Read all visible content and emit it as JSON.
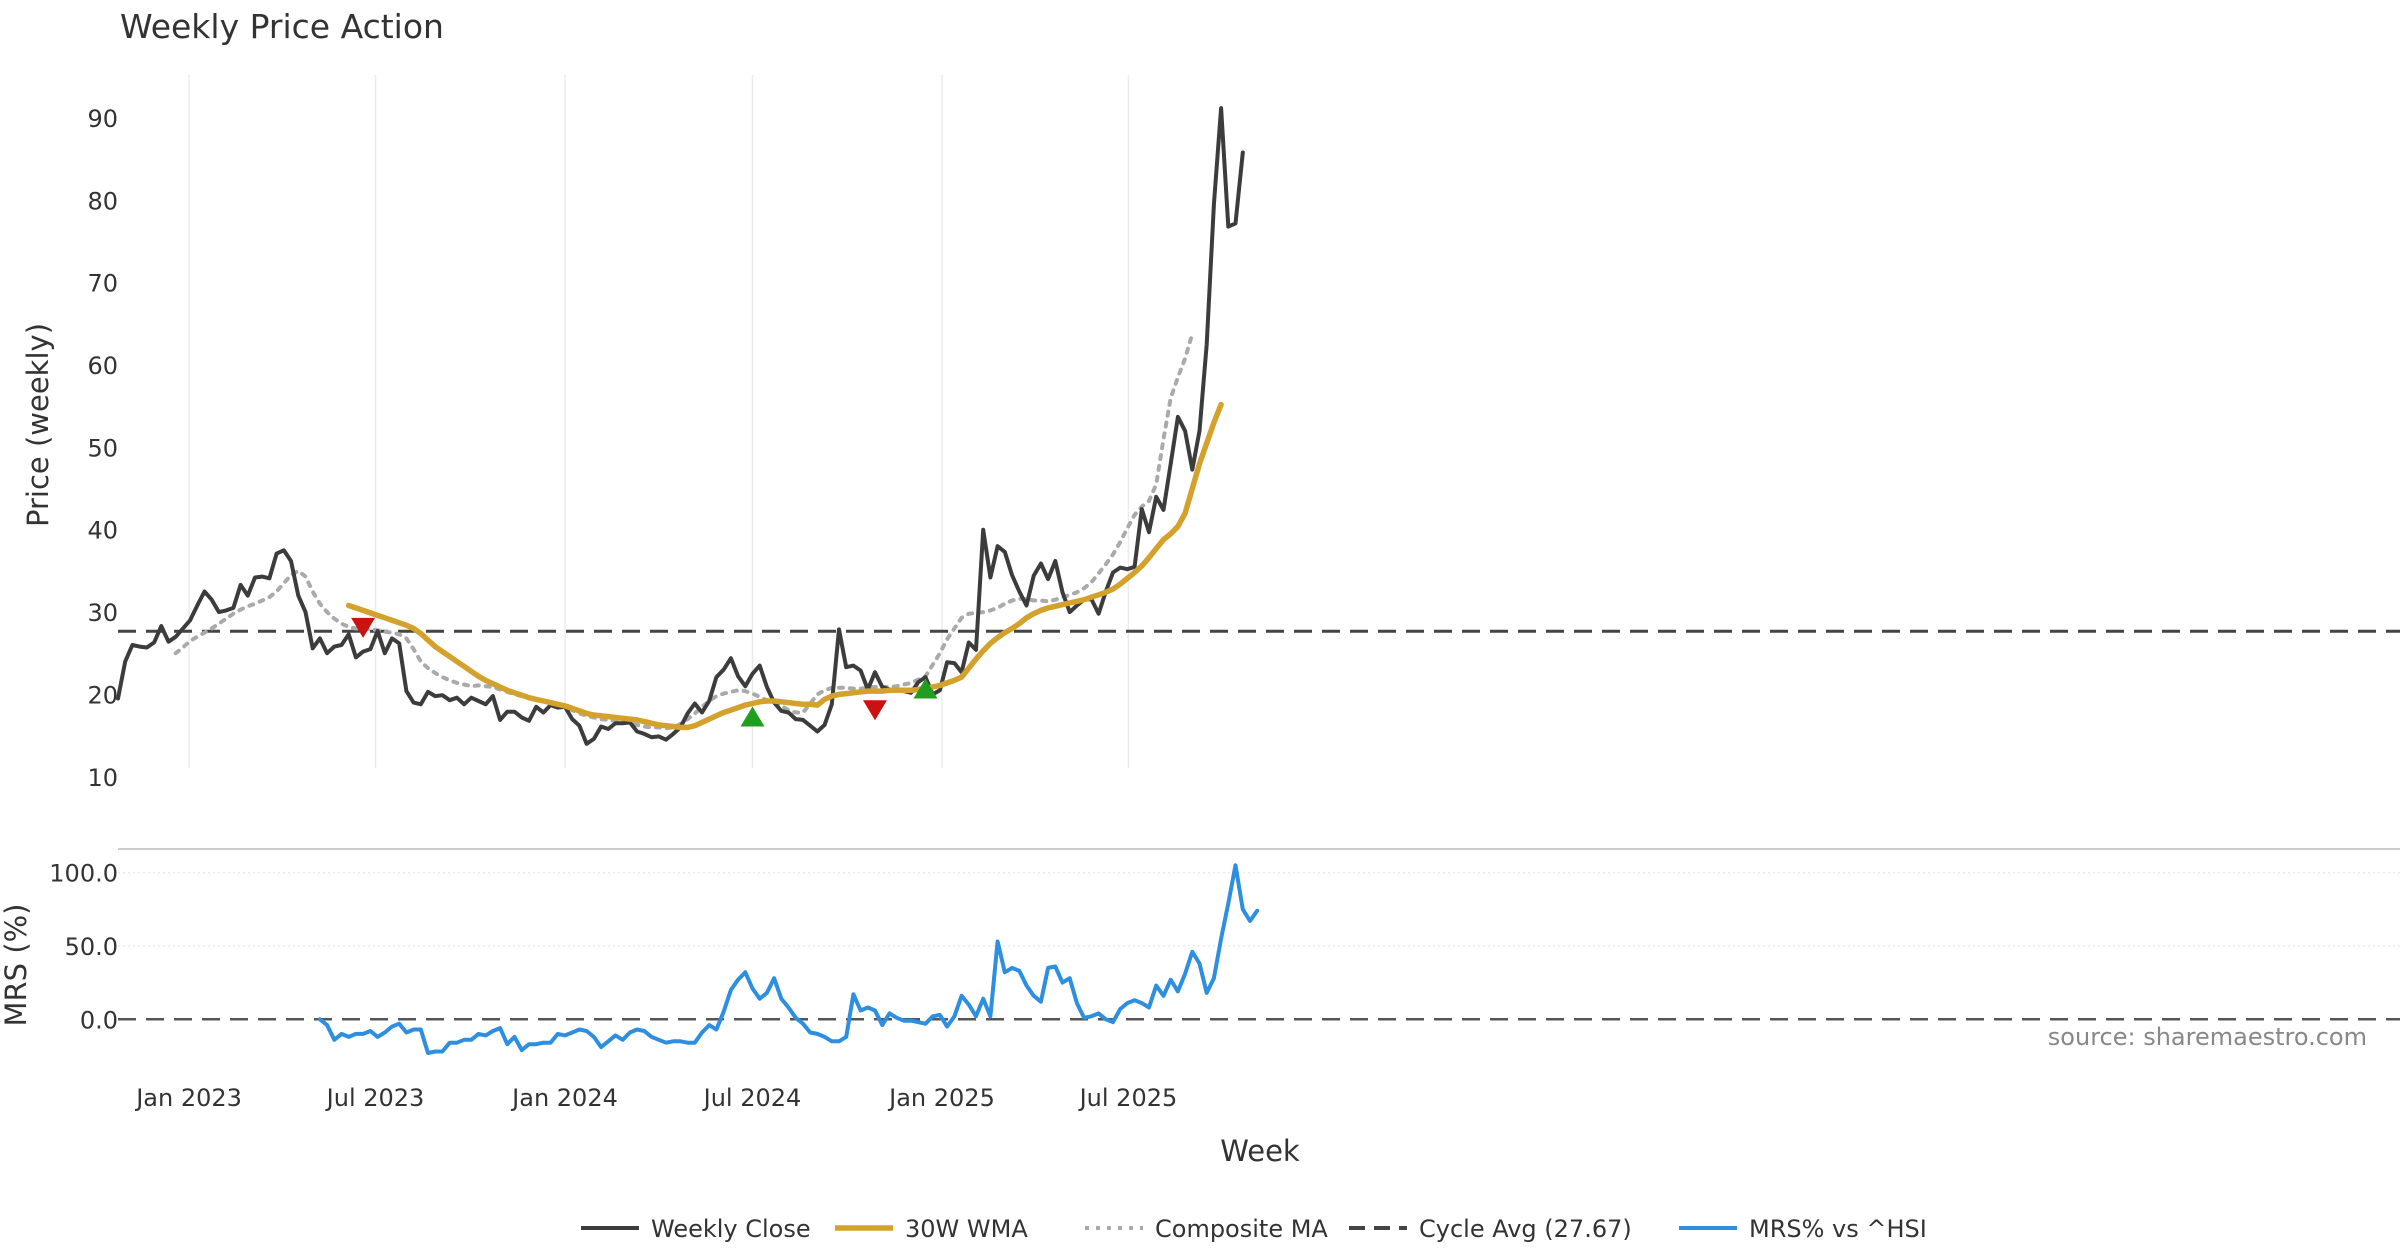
{
  "chart_data": {
    "type": "line",
    "title": "Weekly Price Action",
    "xlabel": "Week",
    "source_label": "source: sharemaestro.com",
    "x_start": "2022-10-24",
    "x_ticks": [
      {
        "date": "2023-01-01",
        "label": "Jan 2023"
      },
      {
        "date": "2023-07-01",
        "label": "Jul 2023"
      },
      {
        "date": "2024-01-01",
        "label": "Jan 2024"
      },
      {
        "date": "2024-07-01",
        "label": "Jul 2024"
      },
      {
        "date": "2025-01-01",
        "label": "Jan 2025"
      },
      {
        "date": "2025-07-01",
        "label": "Jul 2025"
      }
    ],
    "price_panel": {
      "ylabel": "Price (weekly)",
      "ylim": [
        9,
        94
      ],
      "yticks": [
        10,
        20,
        30,
        40,
        50,
        60,
        70,
        80,
        90
      ],
      "cycle_avg": 27.67,
      "series": {
        "weekly_close": [
          {
            "offset": 0,
            "values": [
              19.5,
              24,
              26,
              25.8,
              25.7,
              26.3,
              28.3,
              26.4,
              27,
              28,
              29,
              30.8,
              32.5,
              31.5,
              30,
              30.2,
              30.5,
              33.3,
              32,
              34.2,
              34.3,
              34.1,
              37.1,
              37.5,
              36.2,
              32,
              30,
              25.6,
              26.8,
              25,
              25.8,
              26,
              27.3,
              24.5,
              25.2,
              25.5,
              27.7,
              25,
              26.8,
              26.2,
              20.4,
              19,
              18.8,
              20.3,
              19.8,
              19.9,
              19.3,
              19.6,
              18.8,
              19.6,
              19.2,
              18.8,
              19.8,
              16.9,
              17.9,
              17.9,
              17.2,
              16.8,
              18.5,
              17.8,
              18.7,
              18.4,
              18.5,
              17,
              16.2,
              14,
              14.6,
              16.1,
              15.8,
              16.5,
              16.5,
              16.6,
              15.5,
              15.2,
              14.8,
              14.9,
              14.5,
              15.2,
              16,
              17.7,
              18.9,
              17.8,
              19.2,
              22.1,
              23,
              24.4,
              22.2,
              21,
              22.5,
              23.5,
              20.9,
              19,
              18,
              17.8,
              17,
              16.9,
              16.2,
              15.5,
              16.3,
              18.8,
              27.9,
              23.3,
              23.5,
              22.9,
              20.6,
              22.7,
              20.9,
              20.6,
              20.5,
              20.4,
              20.2,
              21.5,
              22.1,
              20,
              20.5,
              23.9,
              23.8,
              22.7,
              26.3,
              25.4,
              40,
              34.2,
              38,
              37.3,
              34.5,
              32.5,
              30.8,
              34.4,
              35.9,
              34,
              36.2,
              32.4,
              30,
              30.8,
              31.5,
              31.6,
              29.8,
              32.5,
              34.8,
              35.4,
              35.2,
              35.5,
              42.5,
              39.7,
              44,
              42.4,
              48,
              53.7,
              52,
              47.3,
              52,
              62.5,
              79.5,
              91.2,
              76.8,
              77.2,
              85.8
            ]
          }
        ],
        "wma_30w": [
          {
            "offset": 32,
            "values": [
              30.8,
              30.5,
              30.2,
              29.9,
              29.6,
              29.3,
              29,
              28.7,
              28.4,
              28,
              27.4,
              26.6,
              25.8,
              25.2,
              24.6,
              24,
              23.4,
              22.8,
              22.2,
              21.7,
              21.3,
              20.9,
              20.5,
              20.2,
              19.9,
              19.6,
              19.4,
              19.2,
              19,
              18.8,
              18.6,
              18.3,
              18,
              17.7,
              17.5,
              17.4,
              17.3,
              17.2,
              17.1,
              17,
              16.9,
              16.7,
              16.5,
              16.3,
              16.2,
              16.1,
              16,
              16,
              16.2,
              16.6,
              17,
              17.4,
              17.8,
              18.1,
              18.4,
              18.7,
              18.9,
              19.1,
              19.2,
              19.2,
              19.1,
              19,
              18.9,
              18.8,
              18.8,
              18.7,
              19.4,
              19.8,
              20,
              20.1,
              20.2,
              20.3,
              20.4,
              20.4,
              20.4,
              20.5,
              20.5,
              20.5,
              20.5,
              20.6,
              20.7,
              20.9,
              21.1,
              21.4,
              21.7,
              22.1,
              23.2,
              24.3,
              25.3,
              26.2,
              26.9,
              27.5,
              28,
              28.6,
              29.3,
              29.8,
              30.2,
              30.5,
              30.7,
              30.9,
              31.1,
              31.3,
              31.5,
              31.8,
              32.1,
              32.4,
              32.8,
              33.4,
              34.1,
              34.8,
              35.6,
              36.6,
              37.7,
              38.8,
              39.5,
              40.4,
              42,
              45,
              48,
              50.5,
              53,
              55.2
            ]
          }
        ],
        "composite_ma": [
          {
            "offset": 8,
            "values": [
              25,
              25.7,
              26.5,
              27,
              27.5,
              28,
              28.6,
              29.2,
              29.8,
              30.3,
              30.7,
              31,
              31.4,
              31.8,
              32.5,
              33.5,
              34.5,
              35,
              34.3,
              32.5,
              31,
              30,
              29.2,
              28.6,
              28.2,
              28,
              28,
              27.9,
              27.8,
              27.6,
              27.5,
              27.3,
              26.8,
              25.5,
              24,
              23.2,
              22.6,
              22.1,
              21.7,
              21.4,
              21.2,
              21,
              21.1,
              21,
              20.9,
              20.6,
              20.3,
              20,
              19.8,
              19.6,
              19.4,
              19.2,
              19,
              18.8,
              18.5,
              18.1,
              17.7,
              17.4,
              17.2,
              17,
              16.9,
              16.8,
              16.7,
              16.5,
              16.3,
              16.1,
              16,
              16,
              15.9,
              16,
              16.4,
              17,
              17.7,
              18.5,
              19.2,
              19.8,
              20.1,
              20.3,
              20.5,
              20.4,
              20.1,
              19.7,
              19.3,
              19,
              18.6,
              18.1,
              17.8,
              17.8,
              18.9,
              20,
              20.5,
              20.8,
              20.8,
              20.8,
              20.7,
              20.7,
              20.8,
              20.9,
              20.9,
              20.9,
              21,
              21.2,
              21.4,
              21.8,
              22.2,
              23.6,
              25,
              26.7,
              28,
              29.3,
              29.8,
              29.9,
              30,
              30.2,
              30.5,
              31,
              31.4,
              31.6,
              31.6,
              31.4,
              31.4,
              31.3,
              31.5,
              31.8,
              32.1,
              32.4,
              32.9,
              33.6,
              34.7,
              35.8,
              37,
              38.5,
              40.2,
              41.8,
              42.8,
              43.5,
              45.5,
              51,
              56,
              58.5,
              60.8,
              63.8
            ]
          }
        ],
        "signals": [
          {
            "type": "sell",
            "index": 34,
            "value": 28.2
          },
          {
            "type": "buy",
            "index": 88,
            "value": 17.2
          },
          {
            "type": "sell",
            "index": 105,
            "value": 18.2
          },
          {
            "type": "buy",
            "index": 112,
            "value": 20.6
          }
        ]
      }
    },
    "mrs_panel": {
      "ylabel": "MRS (%)",
      "ylim": [
        -38,
        112
      ],
      "yticks": [
        0,
        50,
        100
      ],
      "ytick_labels": [
        "0.0",
        "50.0",
        "100.0"
      ],
      "series": [
        {
          "offset": 28,
          "values": [
            0,
            -4,
            -14,
            -10,
            -12,
            -10,
            -10,
            -8,
            -12,
            -9,
            -5,
            -3,
            -9,
            -7,
            -7,
            -23,
            -22,
            -22,
            -16,
            -16,
            -14,
            -14,
            -10,
            -11,
            -8,
            -6,
            -17,
            -12,
            -21,
            -17,
            -17,
            -16,
            -16,
            -10,
            -11,
            -9,
            -7,
            -8,
            -12,
            -19,
            -15,
            -11,
            -14,
            -9,
            -7,
            -8,
            -12,
            -14,
            -16,
            -15,
            -15,
            -16,
            -16,
            -9,
            -4,
            -7,
            5,
            20,
            27,
            32,
            21,
            14,
            18,
            28,
            14,
            8,
            1,
            -3,
            -9,
            -10,
            -12,
            -15,
            -15,
            -12,
            17,
            6,
            8,
            6,
            -4,
            4,
            1,
            -1,
            -1,
            -2,
            -3,
            2,
            3,
            -5,
            2,
            16,
            10,
            2,
            14,
            2,
            53,
            32,
            35,
            33,
            23,
            16,
            12,
            35,
            36,
            25,
            28,
            11,
            1,
            2,
            4,
            0,
            -2,
            7,
            11,
            13,
            11,
            8,
            23,
            16,
            27,
            19,
            31,
            46,
            38,
            18,
            28,
            55,
            79,
            105,
            75,
            67,
            74
          ]
        }
      ]
    },
    "legend": [
      {
        "key": "weekly_close",
        "label": "Weekly Close",
        "color": "#3c3c3c",
        "style": "solid"
      },
      {
        "key": "wma_30w",
        "label": "30W WMA",
        "color": "#d4a22c",
        "style": "solid"
      },
      {
        "key": "composite_ma",
        "label": "Composite MA",
        "color": "#aaaaaa",
        "style": "dotted"
      },
      {
        "key": "cycle_avg",
        "label": "Cycle Avg (27.67)",
        "color": "#444444",
        "style": "dashed"
      },
      {
        "key": "mrs",
        "label": "MRS% vs ^HSI",
        "color": "#2e8ee0",
        "style": "solid"
      }
    ],
    "colors": {
      "close": "#3c3c3c",
      "wma": "#d4a22c",
      "composite": "#aaaaaa",
      "cycle": "#444444",
      "mrs": "#2e8ee0",
      "buy": "#1f9e1f",
      "sell": "#cc1111",
      "grid": "#ececec",
      "zero": "#555555",
      "separator": "#cccccc"
    }
  }
}
